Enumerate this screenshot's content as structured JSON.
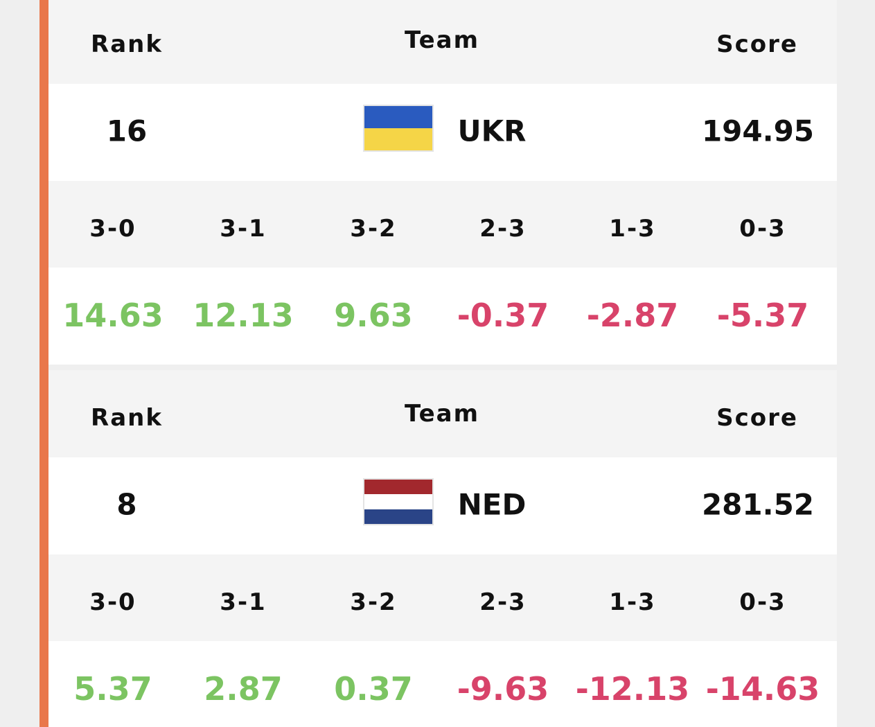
{
  "blocks": [
    {
      "headers": {
        "rank": "Rank",
        "team": "Team",
        "score": "Score"
      },
      "rank": 16,
      "team": "UKR",
      "score": 194.95,
      "flag": [
        "#2a5bbf",
        "#f5d547"
      ],
      "outcomes": [
        "3-0",
        "3-1",
        "3-2",
        "2-3",
        "1-3",
        "0-3"
      ],
      "values": [
        14.63,
        12.13,
        9.63,
        -0.37,
        -2.87,
        -5.37
      ]
    },
    {
      "headers": {
        "rank": "Rank",
        "team": "Team",
        "score": "Score"
      },
      "rank": 8,
      "team": "NED",
      "score": 281.52,
      "flag": [
        "#a2282d",
        "#ffffff",
        "#2a4487"
      ],
      "outcomes": [
        "3-0",
        "3-1",
        "3-2",
        "2-3",
        "1-3",
        "0-3"
      ],
      "values": [
        5.37,
        2.87,
        0.37,
        -9.63,
        -12.13,
        -14.63
      ]
    }
  ],
  "positive_color": "#7cc462",
  "negative_color": "#d8436a"
}
